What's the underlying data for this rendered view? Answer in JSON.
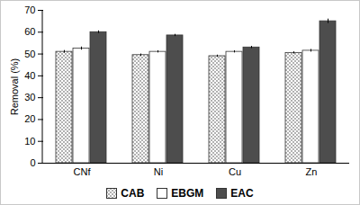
{
  "chart_data": {
    "type": "bar",
    "y_label": "Removal (%)",
    "categories": [
      "CNf",
      "Ni",
      "Cu",
      "Zn"
    ],
    "series": [
      {
        "name": "CAB",
        "color": "#8c8c8c",
        "values": [
          51,
          49.5,
          49,
          50.5
        ],
        "errors": [
          0.6,
          0.5,
          0.5,
          0.5
        ]
      },
      {
        "name": "EBGM",
        "color": "#ffffff",
        "values": [
          52.5,
          51,
          51,
          51.5
        ],
        "errors": [
          0.7,
          0.5,
          0.5,
          0.6
        ]
      },
      {
        "name": "EAC",
        "color": "#4d4d4d",
        "values": [
          60,
          58.5,
          53,
          65
        ],
        "errors": [
          0.6,
          0.5,
          0.5,
          1.0
        ]
      }
    ],
    "ylim": [
      0,
      70
    ],
    "yticks": [
      0,
      10,
      20,
      30,
      40,
      50,
      60,
      70
    ],
    "grid": false,
    "legend": "bottom"
  }
}
